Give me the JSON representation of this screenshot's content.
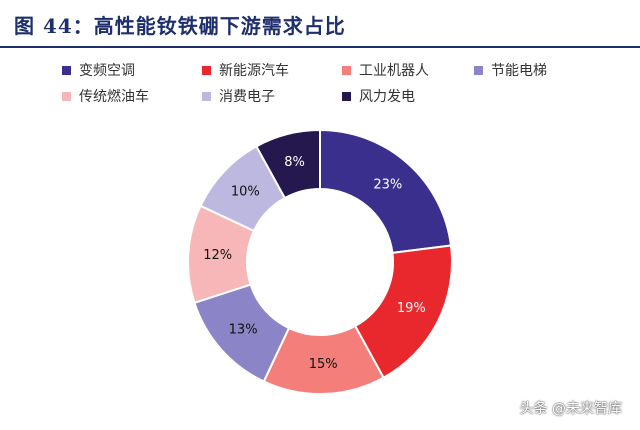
{
  "header": {
    "title": "图 44：高性能钕铁硼下游需求占比"
  },
  "watermark": "头条 @未来智库",
  "chart_data": {
    "type": "pie",
    "donut": true,
    "title": "",
    "legend_position": "top",
    "series": [
      {
        "name": "变频空调",
        "value": 23,
        "label": "23%",
        "color": "#3b2f8e"
      },
      {
        "name": "新能源汽车",
        "value": 19,
        "label": "19%",
        "color": "#e8282c"
      },
      {
        "name": "工业机器人",
        "value": 15,
        "label": "15%",
        "color": "#f47e7a"
      },
      {
        "name": "节能电梯",
        "value": 13,
        "label": "13%",
        "color": "#8b84c6"
      },
      {
        "name": "传统燃油车",
        "value": 12,
        "label": "12%",
        "color": "#f7b6b7"
      },
      {
        "name": "消费电子",
        "value": 10,
        "label": "10%",
        "color": "#bdb8e0"
      },
      {
        "name": "风力发电",
        "value": 8,
        "label": "8%",
        "color": "#24184f"
      }
    ]
  }
}
